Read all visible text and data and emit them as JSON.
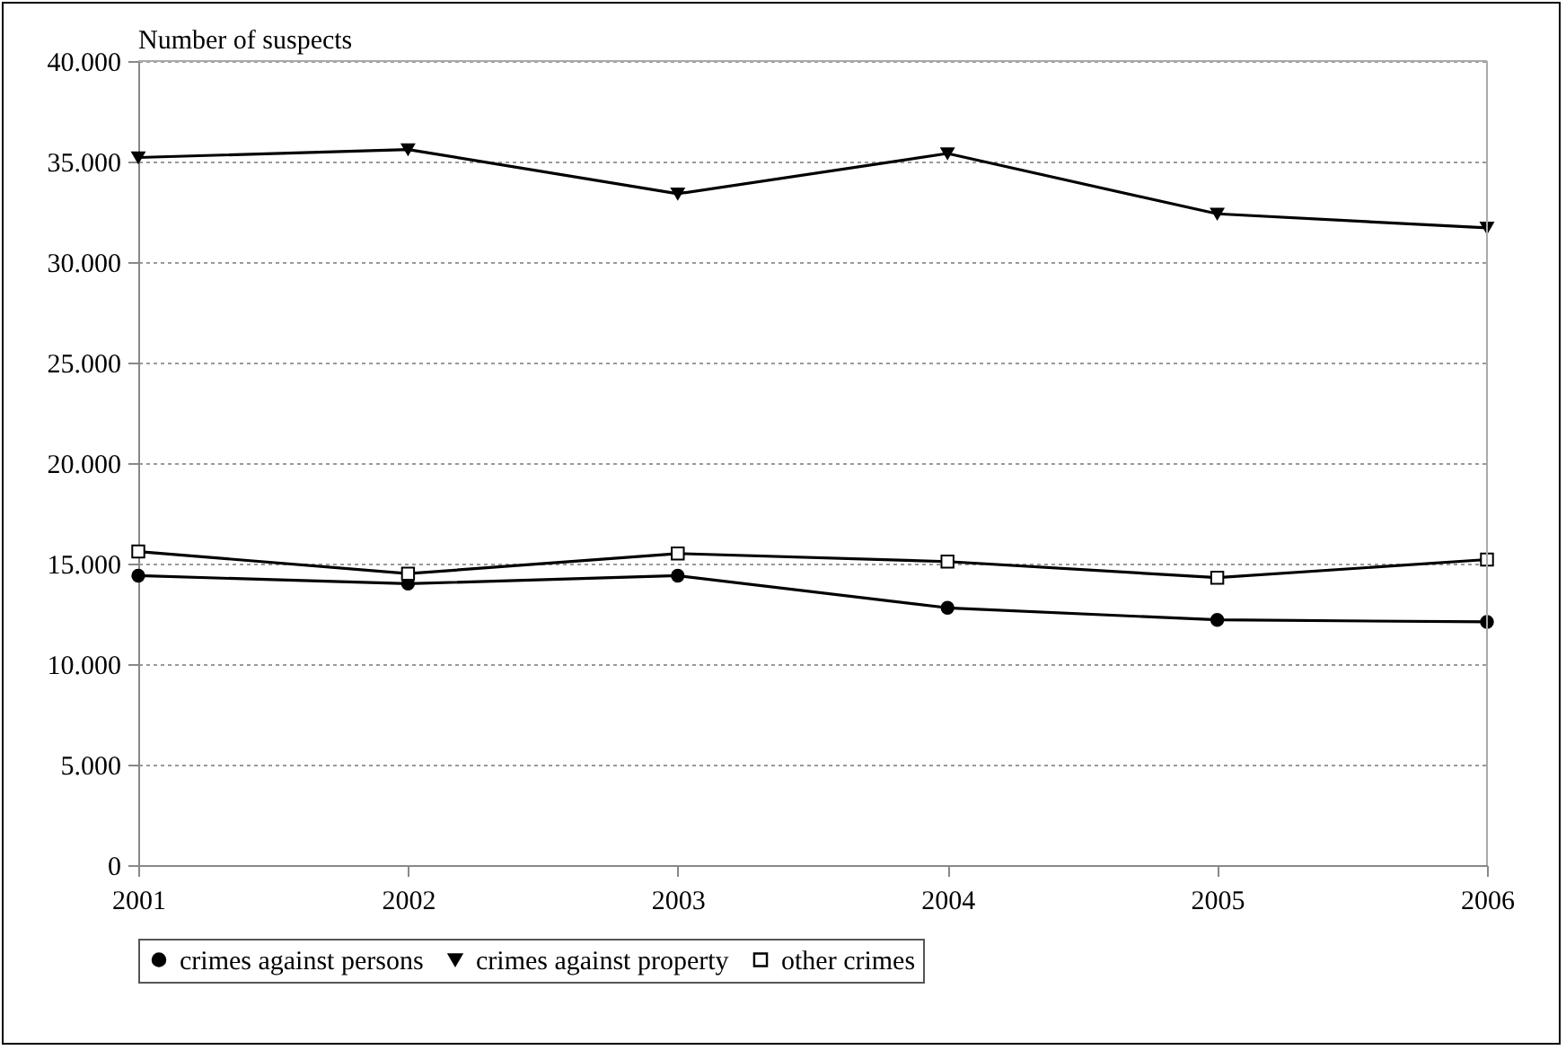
{
  "chart_data": {
    "type": "line",
    "ylabel": "Number of suspects",
    "x": [
      2001,
      2002,
      2003,
      2004,
      2005,
      2006
    ],
    "xlim": [
      2001,
      2006
    ],
    "xticks": [
      2001,
      2002,
      2003,
      2004,
      2005,
      2006
    ],
    "ylim": [
      0,
      40000
    ],
    "yticks": [
      {
        "value": 0,
        "label": "0"
      },
      {
        "value": 5000,
        "label": "5.000"
      },
      {
        "value": 10000,
        "label": "10.000"
      },
      {
        "value": 15000,
        "label": "15.000"
      },
      {
        "value": 20000,
        "label": "20.000"
      },
      {
        "value": 25000,
        "label": "25.000"
      },
      {
        "value": 30000,
        "label": "30.000"
      },
      {
        "value": 35000,
        "label": "35.000"
      },
      {
        "value": 40000,
        "label": "40.000"
      }
    ],
    "grid": "y",
    "legend": "bottom",
    "line_style": "solid",
    "series": [
      {
        "name": "crimes against persons",
        "color": "#000000",
        "marker": "circle",
        "values": [
          14400,
          14000,
          14400,
          12800,
          12200,
          12100
        ]
      },
      {
        "name": "crimes against property",
        "color": "#000000",
        "marker": "triangle-down",
        "values": [
          35200,
          35600,
          33400,
          35400,
          32400,
          31700
        ]
      },
      {
        "name": "other crimes",
        "color": "#000000",
        "marker": "square",
        "values": [
          15600,
          14500,
          15500,
          15100,
          14300,
          15200
        ]
      }
    ]
  }
}
